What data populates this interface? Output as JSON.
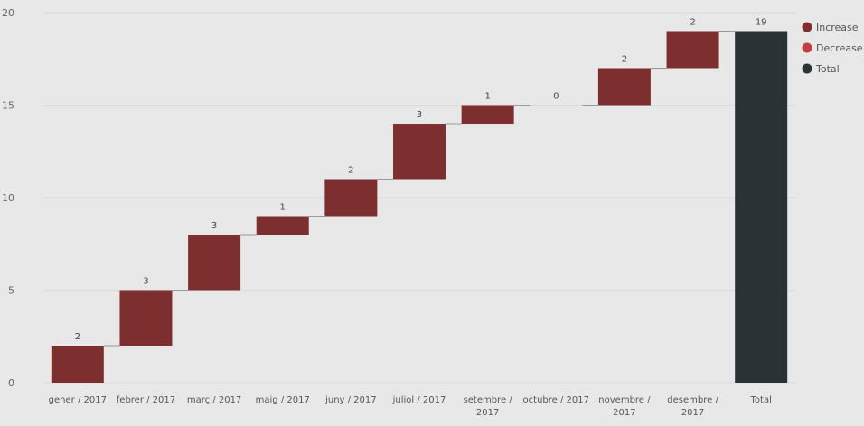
{
  "chart_data": {
    "type": "waterfall",
    "title": "",
    "xlabel": "",
    "ylabel": "",
    "ylim": [
      0,
      20
    ],
    "yticks": [
      0,
      5,
      10,
      15,
      20
    ],
    "grid": true,
    "legend_position": "top-right",
    "categories": [
      [
        "gener / 2017"
      ],
      [
        "febrer / 2017"
      ],
      [
        "març / 2017"
      ],
      [
        "maig / 2017"
      ],
      [
        "juny / 2017"
      ],
      [
        "juliol / 2017"
      ],
      [
        "setembre /",
        "2017"
      ],
      [
        "octubre / 2017"
      ],
      [
        "novembre /",
        "2017"
      ],
      [
        "desembre /",
        "2017"
      ],
      [
        "Total"
      ]
    ],
    "values": [
      2,
      3,
      3,
      1,
      2,
      3,
      1,
      0,
      2,
      2,
      19
    ],
    "kinds": [
      "increase",
      "increase",
      "increase",
      "increase",
      "increase",
      "increase",
      "increase",
      "increase",
      "increase",
      "increase",
      "total"
    ],
    "legend": [
      {
        "label": "Increase",
        "color": "#7d2f2f"
      },
      {
        "label": "Decrease",
        "color": "#c43e3e"
      },
      {
        "label": "Total",
        "color": "#2a3236"
      }
    ],
    "colors": {
      "increase": "#7d2f2f",
      "decrease": "#c43e3e",
      "total": "#2a3236"
    }
  }
}
